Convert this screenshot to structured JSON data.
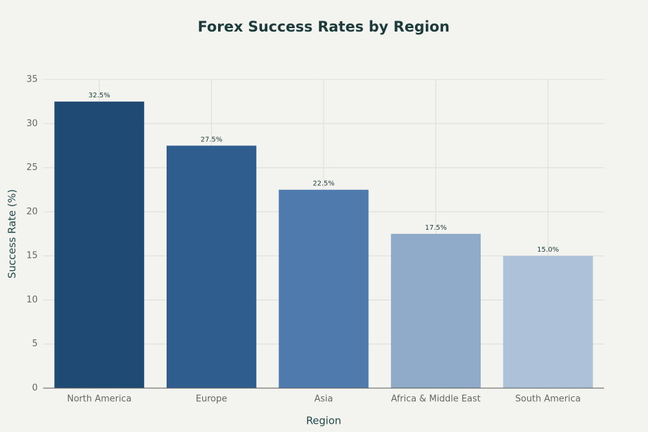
{
  "chart_data": {
    "type": "bar",
    "title": "Forex Success Rates by Region",
    "x_label": "Region",
    "y_label": "Success Rate (%)",
    "categories": [
      "North America",
      "Europe",
      "Asia",
      "Africa & Middle East",
      "South America"
    ],
    "values": [
      32.5,
      27.5,
      22.5,
      17.5,
      15.0
    ],
    "value_labels": [
      "32.5%",
      "27.5%",
      "22.5%",
      "17.5%",
      "15.0%"
    ],
    "colors": [
      "#1f4a73",
      "#2f5e8e",
      "#4f7aad",
      "#90abc9",
      "#adc2d9"
    ],
    "ylim": [
      0,
      35
    ],
    "yticks": [
      0,
      5,
      10,
      15,
      20,
      25,
      30,
      35
    ],
    "grid": true
  }
}
